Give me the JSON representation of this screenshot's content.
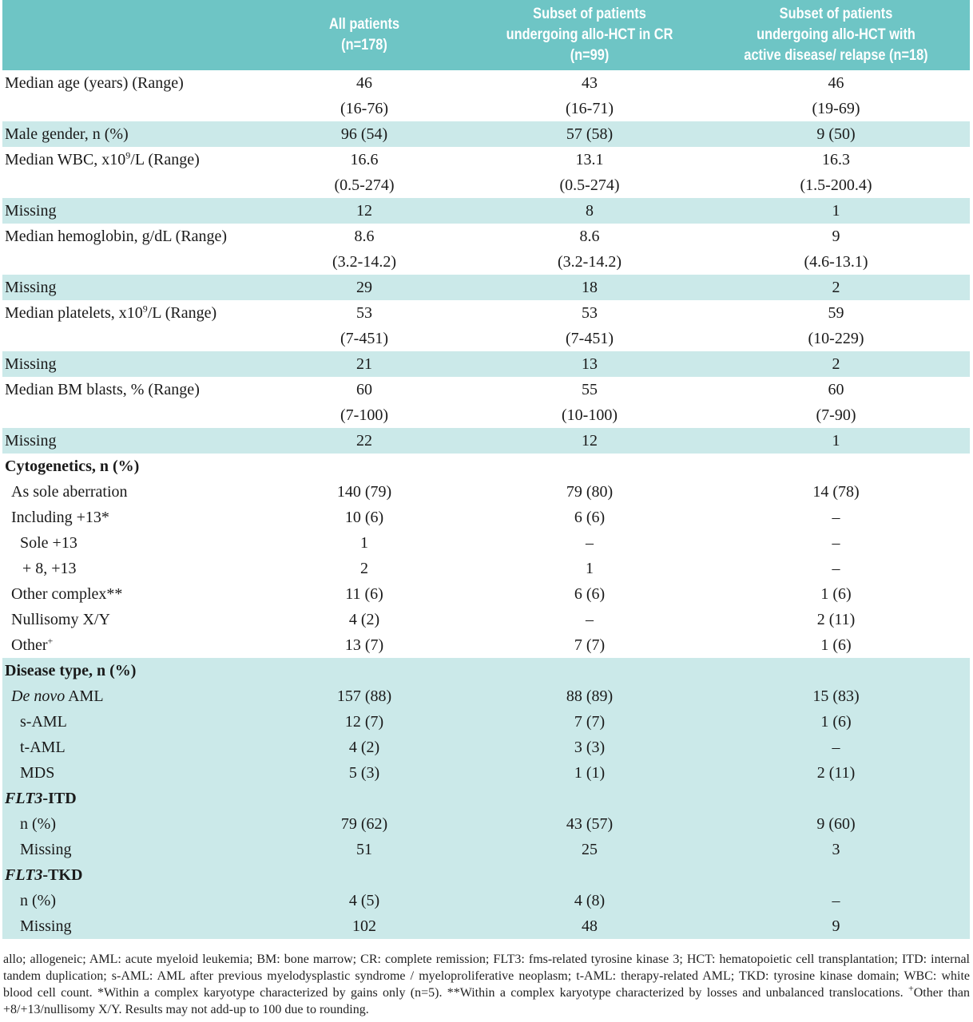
{
  "header": {
    "col0": "",
    "col1": [
      "All patients",
      "(n=178)"
    ],
    "col2": [
      "Subset of patients",
      "undergoing allo-HCT in CR",
      "(n=99)"
    ],
    "col3": [
      "Subset of patients",
      "undergoing allo-HCT with",
      "active disease/ relapse (n=18)"
    ]
  },
  "rows": {
    "age": {
      "label": "Median age (years)  (Range)",
      "v1": "46",
      "r1": "(16-76)",
      "v2": "43",
      "r2": "(16-71)",
      "v3": "46",
      "r3": "(19-69)"
    },
    "male": {
      "label": "Male gender, n (%)",
      "v1": "96 (54)",
      "v2": "57 (58)",
      "v3": "9 (50)"
    },
    "wbc": {
      "label_pre": "Median WBC, x10",
      "label_sup": "9",
      "label_post": "/L (Range)",
      "v1": "16.6",
      "r1": "(0.5-274)",
      "v2": "13.1",
      "r2": "(0.5-274)",
      "v3": "16.3",
      "r3": "(1.5-200.4)"
    },
    "wbc_missing": {
      "label": "Missing",
      "v1": "12",
      "v2": "8",
      "v3": "1"
    },
    "hgb": {
      "label": "Median hemoglobin, g/dL (Range)",
      "v1": "8.6",
      "r1": "(3.2-14.2)",
      "v2": "8.6",
      "r2": "(3.2-14.2)",
      "v3": "9",
      "r3": "(4.6-13.1)"
    },
    "hgb_missing": {
      "label": "Missing",
      "v1": "29",
      "v2": "18",
      "v3": "2"
    },
    "plt": {
      "label_pre": "Median platelets, x10",
      "label_sup": "9",
      "label_post": "/L (Range)",
      "v1": "53",
      "r1": "(7-451)",
      "v2": "53",
      "r2": "(7-451)",
      "v3": "59",
      "r3": "(10-229)"
    },
    "plt_missing": {
      "label": "Missing",
      "v1": "21",
      "v2": "13",
      "v3": "2"
    },
    "blasts": {
      "label": "Median BM blasts, % (Range)",
      "v1": "60",
      "r1": "(7-100)",
      "v2": "55",
      "r2": "(10-100)",
      "v3": "60",
      "r3": "(7-90)"
    },
    "blasts_missing": {
      "label": "Missing",
      "v1": "22",
      "v2": "12",
      "v3": "1"
    },
    "cyto": {
      "label": "Cytogenetics, n (%)"
    },
    "sole_ab": {
      "label": "As sole aberration",
      "v1": "140 (79)",
      "v2": "79 (80)",
      "v3": "14 (78)"
    },
    "incl13": {
      "label": "Including +13*",
      "v1": "10 (6)",
      "v2": "6 (6)",
      "v3": "–"
    },
    "sole13": {
      "label": "Sole +13",
      "v1": "1",
      "v2": "–",
      "v3": "–"
    },
    "p8p13": {
      "label": "+ 8, +13",
      "v1": "2",
      "v2": "1",
      "v3": "–"
    },
    "other_complex": {
      "label": "Other complex**",
      "v1": "11 (6)",
      "v2": "6 (6)",
      "v3": "1 (6)"
    },
    "nullisomy": {
      "label": "Nullisomy X/Y",
      "v1": "4 (2)",
      "v2": "–",
      "v3": "2 (11)"
    },
    "other": {
      "label": "Other",
      "label_sup": "+",
      "v1": "13 (7)",
      "v2": "7 (7)",
      "v3": "1 (6)"
    },
    "disease": {
      "label": "Disease type, n (%)"
    },
    "denovo": {
      "label_ital": "De novo",
      "label_post": " AML",
      "v1": "157 (88)",
      "v2": "88 (89)",
      "v3": "15 (83)"
    },
    "saml": {
      "label": "s-AML",
      "v1": "12 (7)",
      "v2": "7 (7)",
      "v3": "1 (6)"
    },
    "taml": {
      "label": "t-AML",
      "v1": "4 (2)",
      "v2": "3 (3)",
      "v3": "–"
    },
    "mds": {
      "label": "MDS",
      "v1": "5 (3)",
      "v2": "1 (1)",
      "v3": "2 (11)"
    },
    "flt3itd": {
      "label_ital": "FLT3",
      "label_post": "-ITD"
    },
    "itd_n": {
      "label": "n (%)",
      "v1": "79 (62)",
      "v2": "43 (57)",
      "v3": "9 (60)"
    },
    "itd_missing": {
      "label": "Missing",
      "v1": "51",
      "v2": "25",
      "v3": "3"
    },
    "flt3tkd": {
      "label_ital": "FLT3",
      "label_post": "-TKD"
    },
    "tkd_n": {
      "label": "n (%)",
      "v1": "4 (5)",
      "v2": "4 (8)",
      "v3": "–"
    },
    "tkd_missing": {
      "label": "Missing",
      "v1": "102",
      "v2": "48",
      "v3": "9"
    }
  },
  "footnote": {
    "part1": "allo; allogeneic; AML:  acute myeloid leukemia; BM:  bone marrow; CR:  complete remission; FLT3:  fms-related tyrosine kinase 3; HCT:  hematopoietic cell transplantation; ITD: internal tandem duplication; s-AML:  AML after previous myelodysplastic syndrome / myeloproliferative neoplasm; t-AML: therapy-related AML; TKD: tyrosine kinase domain; WBC: white blood cell count. *Within a complex karyotype characterized by gains only (n=5). **Within a complex karyotype characterized by losses and unbalanced translocations. ",
    "sup": "+",
    "part2": "Other than +8/+13/nullisomy X/Y. Results may not add-up to 100 due to rounding."
  }
}
